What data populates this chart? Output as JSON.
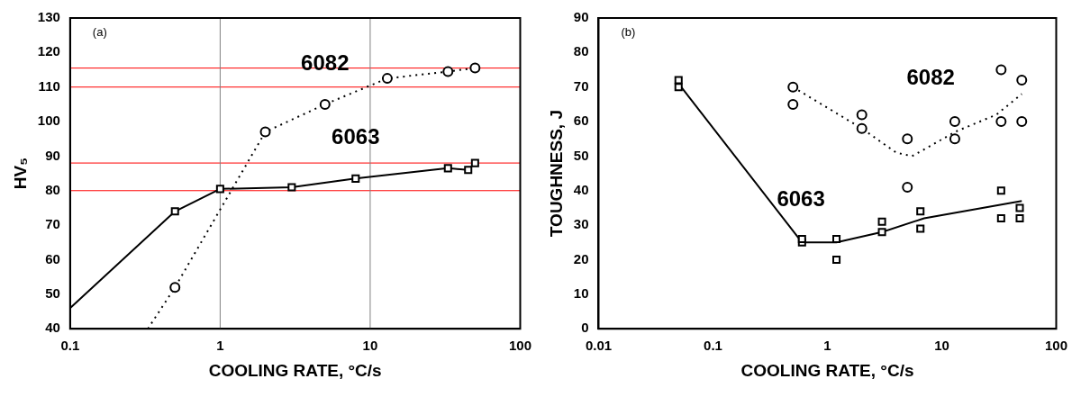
{
  "chart_data": [
    {
      "type": "scatter",
      "xlabel": "COOLING RATE, °C/s",
      "ylabel": "HV₅",
      "log": "x",
      "xlim": [
        0.1,
        100
      ],
      "xticks": [
        0.1,
        1,
        10,
        100
      ],
      "ylim": [
        40,
        130
      ],
      "yticks": [
        40,
        50,
        60,
        70,
        80,
        90,
        100,
        110,
        120,
        130
      ],
      "grid": false,
      "legend": false,
      "annotations": [
        "(a)"
      ],
      "ref_lines": [
        {
          "axis": "y",
          "value": 80,
          "color": "#ff0000"
        },
        {
          "axis": "y",
          "value": 88,
          "color": "#ff0000"
        },
        {
          "axis": "y",
          "value": 110,
          "color": "#ff0000"
        },
        {
          "axis": "y",
          "value": 115.5,
          "color": "#ff0000"
        },
        {
          "axis": "x",
          "value": 1,
          "color": "#808080"
        },
        {
          "axis": "x",
          "value": 10,
          "color": "#808080"
        }
      ],
      "series": [
        {
          "type": "line",
          "name": "6063",
          "color": "#000000",
          "marker": "none",
          "line_style": "solid",
          "x": [
            0.1,
            0.5,
            1,
            3,
            8,
            33,
            45,
            50
          ],
          "values": [
            46,
            74,
            80.5,
            81,
            83.5,
            86.5,
            86,
            88
          ]
        },
        {
          "type": "scatter",
          "color": "#000000",
          "marker": "square",
          "x": [
            0.5,
            1,
            3,
            8,
            33,
            45,
            50
          ],
          "values": [
            74,
            80.5,
            81,
            83.5,
            86.5,
            86,
            88
          ]
        },
        {
          "type": "line",
          "name": "6082",
          "color": "#000000",
          "marker": "none",
          "line_style": "dotted",
          "x": [
            0.33,
            0.5,
            2,
            5,
            13,
            33,
            50
          ],
          "values": [
            40,
            52,
            97,
            105,
            112.5,
            114.5,
            115.5
          ]
        },
        {
          "type": "scatter",
          "color": "#000000",
          "marker": "circle",
          "x": [
            0.5,
            2,
            5,
            13,
            33,
            50
          ],
          "values": [
            52,
            97,
            105,
            112.5,
            114.5,
            115.5
          ]
        }
      ]
    },
    {
      "type": "scatter",
      "xlabel": "COOLING RATE, °C/s",
      "ylabel": "TOUGHNESS, J",
      "log": "x",
      "xlim": [
        0.01,
        100
      ],
      "xticks": [
        0.01,
        0.1,
        1,
        10,
        100
      ],
      "ylim": [
        0,
        90
      ],
      "yticks": [
        0,
        10,
        20,
        30,
        40,
        50,
        60,
        70,
        80,
        90
      ],
      "grid": false,
      "legend": false,
      "annotations": [
        "(b)"
      ],
      "series": [
        {
          "type": "line",
          "name": "6063",
          "color": "#000000",
          "marker": "none",
          "line_style": "solid",
          "x": [
            0.05,
            0.6,
            1.2,
            3,
            7,
            50
          ],
          "values": [
            71,
            25,
            25,
            28,
            32,
            37
          ]
        },
        {
          "type": "scatter",
          "color": "#000000",
          "marker": "square",
          "x": [
            0.05,
            0.05,
            0.6,
            0.6,
            1.2,
            1.2,
            3,
            3,
            6.5,
            6.5,
            33,
            33,
            48,
            48
          ],
          "values": [
            72,
            70,
            25,
            26,
            26,
            20,
            31,
            28,
            34,
            29,
            40,
            32,
            35,
            32
          ]
        },
        {
          "type": "line",
          "name": "6082",
          "color": "#000000",
          "marker": "none",
          "line_style": "dotted",
          "x": [
            0.5,
            2,
            4,
            5.5,
            8,
            13,
            30,
            50
          ],
          "values": [
            70,
            58,
            51,
            50,
            53,
            57,
            62,
            68
          ]
        },
        {
          "type": "scatter",
          "color": "#000000",
          "marker": "circle",
          "x": [
            0.5,
            0.5,
            2,
            2,
            5,
            5,
            13,
            13,
            33,
            33,
            50,
            50
          ],
          "values": [
            70,
            65,
            62,
            58,
            55,
            41,
            60,
            55,
            75,
            60,
            72,
            60
          ]
        }
      ]
    }
  ]
}
